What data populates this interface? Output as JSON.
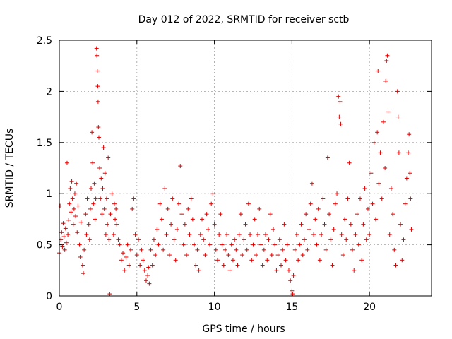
{
  "chart_data": {
    "type": "scatter",
    "title": "Day 012 of 2022, SRMTID for receiver sctb",
    "xlabel": "GPS time / hours",
    "ylabel": "SRMTID / TECUs",
    "xlim": [
      0,
      24
    ],
    "ylim": [
      0,
      2.5
    ],
    "x_ticks": [
      0,
      5,
      10,
      15,
      20
    ],
    "y_ticks": [
      0,
      0.5,
      1,
      1.5,
      2,
      2.5
    ],
    "x_tick_labels": [
      "0",
      "5",
      "10",
      "15",
      "20"
    ],
    "y_tick_labels": [
      "0",
      "0.5",
      "1",
      "1.5",
      "2",
      "2.5"
    ],
    "grid": true,
    "series": [
      {
        "name": "SRMTID",
        "color": "#e00000",
        "marker": "plus",
        "points": [
          [
            0.0,
            0.42
          ],
          [
            0.05,
            0.88
          ],
          [
            0.1,
            0.55
          ],
          [
            0.15,
            0.62
          ],
          [
            0.2,
            0.48
          ],
          [
            0.25,
            0.71
          ],
          [
            0.3,
            0.58
          ],
          [
            0.35,
            0.45
          ],
          [
            0.4,
            0.66
          ],
          [
            0.45,
            0.52
          ],
          [
            0.5,
            1.3
          ],
          [
            0.55,
            0.6
          ],
          [
            0.6,
            0.74
          ],
          [
            0.65,
            0.9
          ],
          [
            0.7,
            1.05
          ],
          [
            0.75,
            0.82
          ],
          [
            0.8,
            1.12
          ],
          [
            0.85,
            0.95
          ],
          [
            0.9,
            0.7
          ],
          [
            0.95,
            0.85
          ],
          [
            1.0,
            1.0
          ],
          [
            1.05,
            0.78
          ],
          [
            1.1,
            1.1
          ],
          [
            1.15,
            0.62
          ],
          [
            1.2,
            0.88
          ],
          [
            1.3,
            0.5
          ],
          [
            1.35,
            0.38
          ],
          [
            1.4,
            0.72
          ],
          [
            1.5,
            0.3
          ],
          [
            1.55,
            0.22
          ],
          [
            1.6,
            0.45
          ],
          [
            1.7,
            0.8
          ],
          [
            1.75,
            0.6
          ],
          [
            1.8,
            0.95
          ],
          [
            1.9,
            0.7
          ],
          [
            1.95,
            0.55
          ],
          [
            2.0,
            0.85
          ],
          [
            2.05,
            1.05
          ],
          [
            2.1,
            1.6
          ],
          [
            2.15,
            1.3
          ],
          [
            2.2,
            0.9
          ],
          [
            2.25,
            1.1
          ],
          [
            2.3,
            0.75
          ],
          [
            2.35,
            0.95
          ],
          [
            2.4,
            2.42
          ],
          [
            2.42,
            2.35
          ],
          [
            2.45,
            2.2
          ],
          [
            2.48,
            2.05
          ],
          [
            2.5,
            1.9
          ],
          [
            2.52,
            1.65
          ],
          [
            2.55,
            1.55
          ],
          [
            2.6,
            1.25
          ],
          [
            2.65,
            0.95
          ],
          [
            2.7,
            1.15
          ],
          [
            2.75,
            0.8
          ],
          [
            2.8,
            1.05
          ],
          [
            2.85,
            1.45
          ],
          [
            2.9,
            0.85
          ],
          [
            2.95,
            1.2
          ],
          [
            3.0,
            0.6
          ],
          [
            3.05,
            0.95
          ],
          [
            3.1,
            0.7
          ],
          [
            3.15,
            1.35
          ],
          [
            3.2,
            0.55
          ],
          [
            3.25,
            0.02
          ],
          [
            3.3,
            0.8
          ],
          [
            3.4,
            1.0
          ],
          [
            3.5,
            0.6
          ],
          [
            3.55,
            0.9
          ],
          [
            3.6,
            0.75
          ],
          [
            3.65,
            0.85
          ],
          [
            3.7,
            0.7
          ],
          [
            3.8,
            0.55
          ],
          [
            3.9,
            0.5
          ],
          [
            4.0,
            0.35
          ],
          [
            4.1,
            0.42
          ],
          [
            4.2,
            0.25
          ],
          [
            4.3,
            0.38
          ],
          [
            4.4,
            0.5
          ],
          [
            4.5,
            0.3
          ],
          [
            4.6,
            0.45
          ],
          [
            4.7,
            0.85
          ],
          [
            4.8,
            0.95
          ],
          [
            4.9,
            0.6
          ],
          [
            5.0,
            0.4
          ],
          [
            5.1,
            0.55
          ],
          [
            5.2,
            0.3
          ],
          [
            5.3,
            0.45
          ],
          [
            5.4,
            0.35
          ],
          [
            5.5,
            0.25
          ],
          [
            5.6,
            0.15
          ],
          [
            5.7,
            0.2
          ],
          [
            5.75,
            0.28
          ],
          [
            5.8,
            0.12
          ],
          [
            5.9,
            0.45
          ],
          [
            6.0,
            0.3
          ],
          [
            6.1,
            0.55
          ],
          [
            6.2,
            0.4
          ],
          [
            6.3,
            0.65
          ],
          [
            6.4,
            0.5
          ],
          [
            6.5,
            0.9
          ],
          [
            6.6,
            0.75
          ],
          [
            6.7,
            0.45
          ],
          [
            6.8,
            1.05
          ],
          [
            6.9,
            0.6
          ],
          [
            7.0,
            0.85
          ],
          [
            7.1,
            0.4
          ],
          [
            7.2,
            0.7
          ],
          [
            7.3,
            0.95
          ],
          [
            7.4,
            0.55
          ],
          [
            7.5,
            0.35
          ],
          [
            7.6,
            0.65
          ],
          [
            7.7,
            0.9
          ],
          [
            7.8,
            1.27
          ],
          [
            7.9,
            0.8
          ],
          [
            8.0,
            0.5
          ],
          [
            8.1,
            0.7
          ],
          [
            8.2,
            0.4
          ],
          [
            8.3,
            0.85
          ],
          [
            8.4,
            0.6
          ],
          [
            8.5,
            0.95
          ],
          [
            8.6,
            0.75
          ],
          [
            8.7,
            0.5
          ],
          [
            8.8,
            0.3
          ],
          [
            8.9,
            0.45
          ],
          [
            9.0,
            0.25
          ],
          [
            9.1,
            0.6
          ],
          [
            9.2,
            0.75
          ],
          [
            9.3,
            0.55
          ],
          [
            9.4,
            0.4
          ],
          [
            9.5,
            0.8
          ],
          [
            9.6,
            0.65
          ],
          [
            9.7,
            0.5
          ],
          [
            9.8,
            0.9
          ],
          [
            9.9,
            1.0
          ],
          [
            10.0,
            0.7
          ],
          [
            10.1,
            0.45
          ],
          [
            10.2,
            0.35
          ],
          [
            10.3,
            0.6
          ],
          [
            10.4,
            0.8
          ],
          [
            10.5,
            0.5
          ],
          [
            10.6,
            0.3
          ],
          [
            10.7,
            0.45
          ],
          [
            10.8,
            0.6
          ],
          [
            10.9,
            0.4
          ],
          [
            11.0,
            0.25
          ],
          [
            11.1,
            0.5
          ],
          [
            11.2,
            0.35
          ],
          [
            11.3,
            0.55
          ],
          [
            11.4,
            0.45
          ],
          [
            11.5,
            0.3
          ],
          [
            11.6,
            0.6
          ],
          [
            11.7,
            0.8
          ],
          [
            11.8,
            0.4
          ],
          [
            11.9,
            0.55
          ],
          [
            12.0,
            0.7
          ],
          [
            12.1,
            0.45
          ],
          [
            12.2,
            0.9
          ],
          [
            12.3,
            0.6
          ],
          [
            12.4,
            0.35
          ],
          [
            12.5,
            0.5
          ],
          [
            12.6,
            0.75
          ],
          [
            12.7,
            0.4
          ],
          [
            12.8,
            0.6
          ],
          [
            12.9,
            0.85
          ],
          [
            13.0,
            0.5
          ],
          [
            13.1,
            0.3
          ],
          [
            13.2,
            0.45
          ],
          [
            13.3,
            0.6
          ],
          [
            13.4,
            0.35
          ],
          [
            13.5,
            0.55
          ],
          [
            13.6,
            0.8
          ],
          [
            13.7,
            0.4
          ],
          [
            13.8,
            0.65
          ],
          [
            13.9,
            0.5
          ],
          [
            14.0,
            0.25
          ],
          [
            14.1,
            0.4
          ],
          [
            14.2,
            0.55
          ],
          [
            14.3,
            0.3
          ],
          [
            14.4,
            0.45
          ],
          [
            14.5,
            0.7
          ],
          [
            14.6,
            0.35
          ],
          [
            14.7,
            0.5
          ],
          [
            14.8,
            0.25
          ],
          [
            14.9,
            0.15
          ],
          [
            15.0,
            0.05
          ],
          [
            15.05,
            0.02
          ],
          [
            15.1,
            0.2
          ],
          [
            15.2,
            0.45
          ],
          [
            15.3,
            0.6
          ],
          [
            15.4,
            0.35
          ],
          [
            15.5,
            0.5
          ],
          [
            15.6,
            0.7
          ],
          [
            15.7,
            0.4
          ],
          [
            15.8,
            0.55
          ],
          [
            15.9,
            0.8
          ],
          [
            16.0,
            0.45
          ],
          [
            16.1,
            0.65
          ],
          [
            16.2,
            0.9
          ],
          [
            16.3,
            1.1
          ],
          [
            16.4,
            0.6
          ],
          [
            16.5,
            0.75
          ],
          [
            16.6,
            0.5
          ],
          [
            16.7,
            0.85
          ],
          [
            16.8,
            0.35
          ],
          [
            16.9,
            0.6
          ],
          [
            17.0,
            0.95
          ],
          [
            17.1,
            0.7
          ],
          [
            17.2,
            0.45
          ],
          [
            17.3,
            1.35
          ],
          [
            17.4,
            0.8
          ],
          [
            17.5,
            0.55
          ],
          [
            17.6,
            0.3
          ],
          [
            17.7,
            0.65
          ],
          [
            17.8,
            0.9
          ],
          [
            17.9,
            1.0
          ],
          [
            18.0,
            1.95
          ],
          [
            18.05,
            1.75
          ],
          [
            18.1,
            1.9
          ],
          [
            18.15,
            1.68
          ],
          [
            18.2,
            0.6
          ],
          [
            18.3,
            0.4
          ],
          [
            18.4,
            0.75
          ],
          [
            18.5,
            0.55
          ],
          [
            18.6,
            0.95
          ],
          [
            18.7,
            1.3
          ],
          [
            18.8,
            0.7
          ],
          [
            18.9,
            0.45
          ],
          [
            19.0,
            0.25
          ],
          [
            19.1,
            0.6
          ],
          [
            19.2,
            0.8
          ],
          [
            19.3,
            0.5
          ],
          [
            19.4,
            0.95
          ],
          [
            19.5,
            0.35
          ],
          [
            19.6,
            0.7
          ],
          [
            19.7,
            1.05
          ],
          [
            19.8,
            0.55
          ],
          [
            19.9,
            0.85
          ],
          [
            20.0,
            0.6
          ],
          [
            20.1,
            1.2
          ],
          [
            20.2,
            0.9
          ],
          [
            20.3,
            1.5
          ],
          [
            20.4,
            0.75
          ],
          [
            20.5,
            1.6
          ],
          [
            20.55,
            2.2
          ],
          [
            20.6,
            1.1
          ],
          [
            20.7,
            1.4
          ],
          [
            20.8,
            0.95
          ],
          [
            20.9,
            1.7
          ],
          [
            21.0,
            1.25
          ],
          [
            21.05,
            2.1
          ],
          [
            21.1,
            2.3
          ],
          [
            21.15,
            2.35
          ],
          [
            21.2,
            1.8
          ],
          [
            21.3,
            0.6
          ],
          [
            21.4,
            1.05
          ],
          [
            21.5,
            0.8
          ],
          [
            21.6,
            0.45
          ],
          [
            21.7,
            0.3
          ],
          [
            21.8,
            2.0
          ],
          [
            21.85,
            1.75
          ],
          [
            21.9,
            1.4
          ],
          [
            22.0,
            0.7
          ],
          [
            22.1,
            0.35
          ],
          [
            22.2,
            0.55
          ],
          [
            22.3,
            0.9
          ],
          [
            22.4,
            1.15
          ],
          [
            22.5,
            1.4
          ],
          [
            22.55,
            1.58
          ],
          [
            22.6,
            1.2
          ],
          [
            22.65,
            0.95
          ],
          [
            22.7,
            0.65
          ]
        ]
      }
    ]
  }
}
